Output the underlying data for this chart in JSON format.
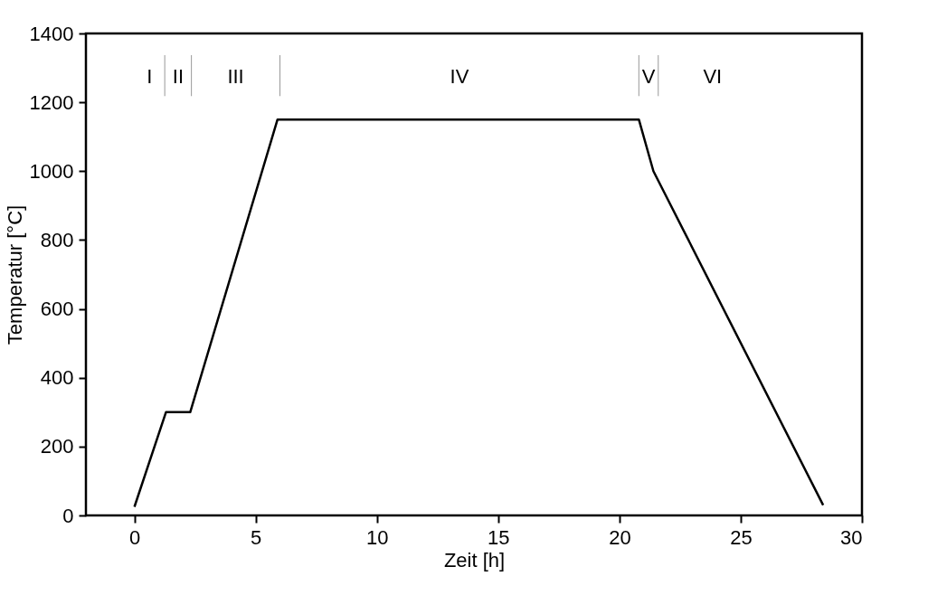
{
  "chart_data": {
    "type": "line",
    "xlabel": "Zeit [h]",
    "ylabel": "Temperatur [°C]",
    "series": [
      {
        "color": "#000000",
        "x": [
          0,
          1.3,
          2.3,
          5.9,
          20.8,
          21.4,
          28.4
        ],
        "values": [
          25,
          300,
          300,
          1150,
          1150,
          1000,
          30
        ]
      }
    ],
    "xlim": [
      -2,
      30
    ],
    "xticks": [
      0,
      5,
      10,
      15,
      20,
      25,
      30
    ],
    "ylim": [
      0,
      1400
    ],
    "yticks": [
      0,
      200,
      400,
      600,
      800,
      1000,
      1200,
      1400
    ],
    "grid": false,
    "marker": "none",
    "line_style": "solid",
    "ref_lines": [
      {
        "axis": "x",
        "value": 1.25,
        "color": "#999999"
      },
      {
        "axis": "x",
        "value": 2.35,
        "color": "#999999"
      },
      {
        "axis": "x",
        "value": 6.0,
        "color": "#999999"
      },
      {
        "axis": "x",
        "value": 20.8,
        "color": "#999999"
      },
      {
        "axis": "x",
        "value": 21.6,
        "color": "#999999"
      }
    ],
    "annotations": [
      "I",
      "II",
      "III",
      "IV",
      "V",
      "VI"
    ]
  }
}
